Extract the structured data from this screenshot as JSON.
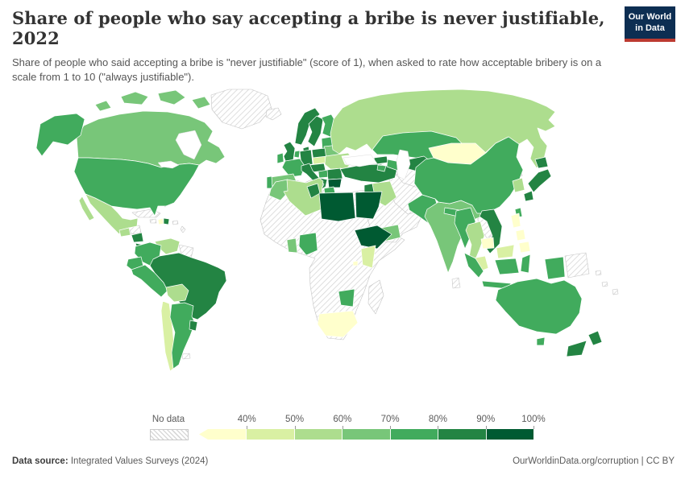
{
  "header": {
    "title": "Share of people who say accepting a bribe is never justifiable, 2022",
    "subtitle": "Share of people who said accepting a bribe is \"never justifiable\" (score of 1), when asked to rate how acceptable bribery is on a scale from 1 to 10 (\"always justifiable\").",
    "logo": {
      "line1": "Our World",
      "line2": "in Data",
      "bg": "#0d2e52",
      "accent": "#bc3a31"
    }
  },
  "legend": {
    "no_data_label": "No data",
    "tick_labels": [
      "40%",
      "50%",
      "60%",
      "70%",
      "80%",
      "90%",
      "100%"
    ],
    "bins": [
      {
        "range": "<40%",
        "color": "#ffffcc"
      },
      {
        "range": "40-50%",
        "color": "#d9f0a3"
      },
      {
        "range": "50-60%",
        "color": "#addd8e"
      },
      {
        "range": "60-70%",
        "color": "#78c679"
      },
      {
        "range": "70-80%",
        "color": "#41ab5d"
      },
      {
        "range": "80-90%",
        "color": "#238443"
      },
      {
        "range": "90-100%",
        "color": "#005a32"
      }
    ]
  },
  "footer": {
    "source_label": "Data source:",
    "source_value": " Integrated Values Surveys (2024)",
    "attribution": "OurWorldinData.org/corruption | CC BY"
  },
  "chart_data": {
    "type": "choropleth",
    "title": "Share of people who say accepting a bribe is never justifiable",
    "year": 2022,
    "unit": "% of respondents scoring bribery 1 (never justifiable) on a 1-10 scale",
    "legend_bins": [
      "<40%",
      "40-50%",
      "50-60%",
      "60-70%",
      "70-80%",
      "80-90%",
      "90-100%"
    ],
    "legend_colors": [
      "#ffffcc",
      "#d9f0a3",
      "#addd8e",
      "#78c679",
      "#41ab5d",
      "#238443",
      "#005a32"
    ],
    "value_precision": "values read from map colors at 10-percentage-point bin precision",
    "regions": [
      {
        "name": "United States",
        "value": "70-80%"
      },
      {
        "name": "Canada",
        "value": "60-70%"
      },
      {
        "name": "Mexico",
        "value": "50-60%"
      },
      {
        "name": "Guatemala",
        "value": "50-60%"
      },
      {
        "name": "Nicaragua",
        "value": "80-90%"
      },
      {
        "name": "Panama",
        "value": "80-90%"
      },
      {
        "name": "Haiti",
        "value": "<40%"
      },
      {
        "name": "Dominican Republic",
        "value": "80-90%"
      },
      {
        "name": "Venezuela",
        "value": "50-60%"
      },
      {
        "name": "Colombia",
        "value": "70-80%"
      },
      {
        "name": "Ecuador",
        "value": "70-80%"
      },
      {
        "name": "Peru",
        "value": "70-80%"
      },
      {
        "name": "Brazil",
        "value": "80-90%"
      },
      {
        "name": "Bolivia",
        "value": "50-60%"
      },
      {
        "name": "Chile",
        "value": "40-50%"
      },
      {
        "name": "Argentina",
        "value": "70-80%"
      },
      {
        "name": "Uruguay",
        "value": "80-90%"
      },
      {
        "name": "United Kingdom",
        "value": "80-90%"
      },
      {
        "name": "Ireland",
        "value": "70-80%"
      },
      {
        "name": "Norway",
        "value": "80-90%"
      },
      {
        "name": "Sweden",
        "value": "80-90%"
      },
      {
        "name": "Finland",
        "value": "70-80%"
      },
      {
        "name": "Denmark",
        "value": "80-90%"
      },
      {
        "name": "Germany",
        "value": "80-90%"
      },
      {
        "name": "Netherlands",
        "value": "70-80%"
      },
      {
        "name": "France",
        "value": "70-80%"
      },
      {
        "name": "Spain",
        "value": "60-70%"
      },
      {
        "name": "Portugal",
        "value": "70-80%"
      },
      {
        "name": "Italy",
        "value": "80-90%"
      },
      {
        "name": "Poland",
        "value": "80-90%"
      },
      {
        "name": "Czechia",
        "value": "80-90%"
      },
      {
        "name": "Slovakia",
        "value": "40-50%"
      },
      {
        "name": "Hungary",
        "value": "70-80%"
      },
      {
        "name": "Ukraine",
        "value": "50-60%"
      },
      {
        "name": "Belarus",
        "value": "60-70%"
      },
      {
        "name": "Romania",
        "value": "80-90%"
      },
      {
        "name": "Serbia",
        "value": "80-90%"
      },
      {
        "name": "Bulgaria",
        "value": "90-100%"
      },
      {
        "name": "Albania",
        "value": "90-100%"
      },
      {
        "name": "Greece",
        "value": "70-80%"
      },
      {
        "name": "Russia",
        "value": "50-60%"
      },
      {
        "name": "Turkey",
        "value": "80-90%"
      },
      {
        "name": "Georgia",
        "value": "80-90%"
      },
      {
        "name": "Armenia",
        "value": "70-80%"
      },
      {
        "name": "Azerbaijan",
        "value": "70-80%"
      },
      {
        "name": "Iraq",
        "value": "50-60%"
      },
      {
        "name": "Yemen",
        "value": "60-70%"
      },
      {
        "name": "Kazakhstan",
        "value": "70-80%"
      },
      {
        "name": "Uzbekistan",
        "value": "80-90%"
      },
      {
        "name": "Kyrgyzstan",
        "value": "80-90%"
      },
      {
        "name": "Tajikistan",
        "value": "<40%"
      },
      {
        "name": "Pakistan",
        "value": "70-80%"
      },
      {
        "name": "India",
        "value": "60-70%"
      },
      {
        "name": "Nepal",
        "value": "70-80%"
      },
      {
        "name": "Bangladesh",
        "value": "70-80%"
      },
      {
        "name": "Mongolia",
        "value": "<40%"
      },
      {
        "name": "China",
        "value": "70-80%"
      },
      {
        "name": "South Korea",
        "value": "50-60%"
      },
      {
        "name": "Japan",
        "value": "80-90%"
      },
      {
        "name": "Taiwan",
        "value": "70-80%"
      },
      {
        "name": "Myanmar",
        "value": "70-80%"
      },
      {
        "name": "Thailand",
        "value": "50-60%"
      },
      {
        "name": "Vietnam",
        "value": "80-90%"
      },
      {
        "name": "Cambodia",
        "value": "<40%"
      },
      {
        "name": "Philippines",
        "value": "<40%"
      },
      {
        "name": "Malaysia",
        "value": "40-50%"
      },
      {
        "name": "Indonesia",
        "value": "70-80%"
      },
      {
        "name": "Australia",
        "value": "70-80%"
      },
      {
        "name": "New Zealand",
        "value": "80-90%"
      },
      {
        "name": "Morocco",
        "value": "60-70%"
      },
      {
        "name": "Algeria",
        "value": "50-60%"
      },
      {
        "name": "Tunisia",
        "value": "80-90%"
      },
      {
        "name": "Libya",
        "value": "90-100%"
      },
      {
        "name": "Egypt",
        "value": "90-100%"
      },
      {
        "name": "Ghana",
        "value": "60-70%"
      },
      {
        "name": "Nigeria",
        "value": "70-80%"
      },
      {
        "name": "Ethiopia",
        "value": "90-100%"
      },
      {
        "name": "Kenya",
        "value": "40-50%"
      },
      {
        "name": "Rwanda",
        "value": "<40%"
      },
      {
        "name": "Zimbabwe",
        "value": "70-80%"
      },
      {
        "name": "South Africa",
        "value": "<40%"
      }
    ],
    "no_data_regions": [
      "Greenland",
      "Iceland",
      "Cuba",
      "Jamaica",
      "Honduras",
      "Guyana",
      "Suriname",
      "Paraguay",
      "Most of Sub-Saharan Africa",
      "Madagascar",
      "Saudi Arabia",
      "Iran",
      "Oman",
      "Afghanistan",
      "Turkmenistan",
      "North Korea",
      "Laos",
      "Sri Lanka",
      "Papua New Guinea",
      "Pacific island states"
    ]
  },
  "map": {
    "region_colors": {
      "canada": "#78c679",
      "usa": "#41ab5d",
      "alaska": "#41ab5d",
      "mexico": "#addd8e",
      "guatemala": "#addd8e",
      "nicaragua": "#238443",
      "costa_panama": "#238443",
      "haiti": "#ffffcc",
      "dominican": "#238443",
      "venezuela": "#addd8e",
      "colombia": "#41ab5d",
      "ecuador": "#41ab5d",
      "peru": "#41ab5d",
      "brazil": "#238443",
      "bolivia": "#addd8e",
      "chile": "#d9f0a3",
      "argentina": "#41ab5d",
      "uruguay": "#238443",
      "uk": "#238443",
      "ireland": "#41ab5d",
      "norway": "#238443",
      "sweden": "#238443",
      "finland": "#41ab5d",
      "denmark": "#238443",
      "baltics": "#41ab5d",
      "belarus": "#78c679",
      "poland": "#238443",
      "germany": "#238443",
      "netherlands": "#41ab5d",
      "france": "#41ab5d",
      "spain": "#78c679",
      "portugal": "#41ab5d",
      "central_europe": "#238443",
      "slovakia": "#d9f0a3",
      "hungary": "#41ab5d",
      "ukraine": "#addd8e",
      "romania": "#238443",
      "balkans": "#238443",
      "bulgaria": "#005a32",
      "albania": "#005a32",
      "greece": "#41ab5d",
      "italy": "#238443",
      "russia": "#addd8e",
      "turkey": "#238443",
      "georgia": "#238443",
      "armenia": "#41ab5d",
      "azerbaijan": "#41ab5d",
      "levant": "#238443",
      "iraq": "#addd8e",
      "yemen": "#78c679",
      "kazakhstan": "#41ab5d",
      "uzbekistan": "#238443",
      "kyrgyzstan": "#238443",
      "tajikistan": "#ffffcc",
      "pakistan": "#41ab5d",
      "india": "#78c679",
      "nepal": "#41ab5d",
      "bangladesh": "#41ab5d",
      "mongolia": "#ffffcc",
      "china": "#41ab5d",
      "south_korea": "#addd8e",
      "japan": "#238443",
      "taiwan": "#41ab5d",
      "myanmar": "#41ab5d",
      "thailand": "#addd8e",
      "vietnam": "#238443",
      "cambodia": "#ffffcc",
      "philippines": "#ffffcc",
      "malaysia": "#d9f0a3",
      "indonesia": "#41ab5d",
      "australia": "#41ab5d",
      "new_zealand": "#238443",
      "morocco": "#78c679",
      "algeria": "#addd8e",
      "tunisia": "#238443",
      "libya": "#005a32",
      "egypt": "#005a32",
      "ghana": "#78c679",
      "nigeria": "#41ab5d",
      "ethiopia": "#005a32",
      "kenya": "#d9f0a3",
      "rwanda": "#ffffcc",
      "zimbabwe": "#41ab5d",
      "south_africa": "#ffffcc"
    }
  }
}
